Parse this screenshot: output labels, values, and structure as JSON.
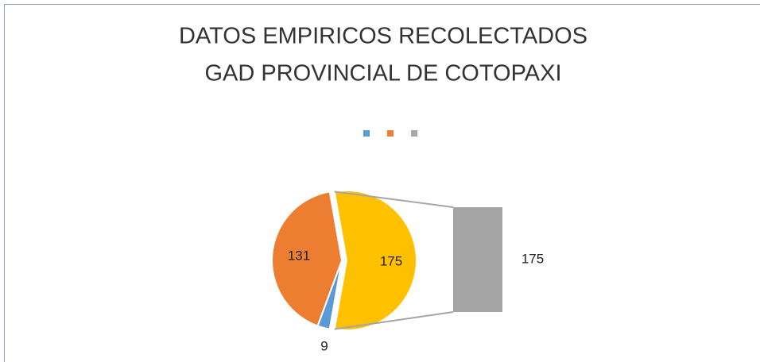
{
  "chart_data": {
    "type": "bar-of-pie",
    "title": [
      "DATOS EMPIRICOS RECOLECTADOS",
      "GAD PROVINCIAL DE COTOPAXI"
    ],
    "values": [
      9,
      131,
      175
    ],
    "colors": [
      "#5b9bd5",
      "#ed7d31",
      "#ffc000"
    ],
    "bar": {
      "values": [
        175
      ],
      "color": "#a5a5a5"
    },
    "legend_colors": [
      "#5b9bd5",
      "#ed7d31",
      "#a5a5a5"
    ],
    "legend": "top"
  }
}
